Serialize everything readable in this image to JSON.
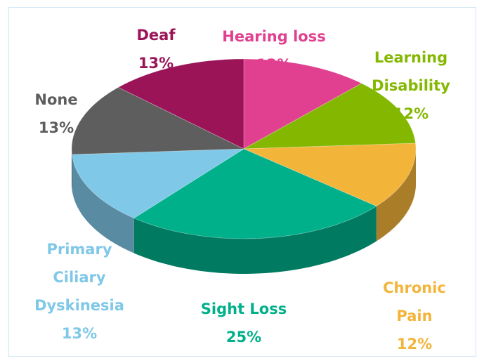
{
  "chart_data": {
    "type": "pie3d",
    "categories": [
      "Hearing loss",
      "Learning Disability",
      "Chronic Pain",
      "Sight Loss",
      "Primary Ciliary Dyskinesia",
      "None",
      "Deaf"
    ],
    "values": [
      12,
      12,
      12,
      25,
      13,
      13,
      13
    ],
    "value_labels": [
      "12%",
      "12%",
      "12%",
      "25%",
      "13%",
      "13%",
      "13%"
    ],
    "colors": [
      "#e0408f",
      "#84b800",
      "#f3b43a",
      "#00b08a",
      "#7fc8e8",
      "#5e5e5e",
      "#9b1458"
    ]
  }
}
